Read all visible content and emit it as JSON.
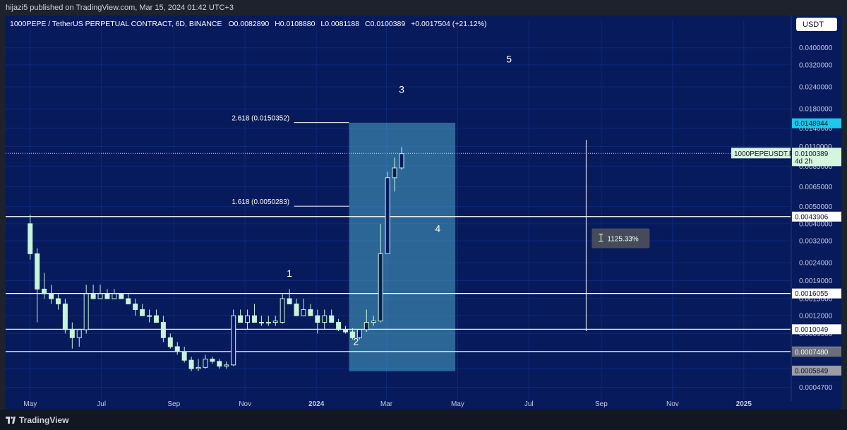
{
  "header": {
    "published": "hijazi5 published on TradingView.com, Mar 15, 2024 01:42 UTC+3",
    "symbol_line": "1000PEPE / TetherUS PERPETUAL CONTRACT, 6D, BINANCE",
    "o_label": "O",
    "o_value": "0.0082890",
    "h_label": "H",
    "h_value": "0.0108880",
    "l_label": "L",
    "l_value": "0.0081188",
    "c_label": "C",
    "c_value": "0.0100389",
    "change": "+0.0017504 (+21.12%)"
  },
  "currency_button": "USDT",
  "footer": {
    "brand": "TradingView"
  },
  "colors": {
    "background": "#061a5c",
    "candle": "#c8f5d9",
    "candle_outline": "#c8f5d9",
    "line": "#ffffff",
    "box_fill": "#4aa6c8",
    "axis_text": "#c5cbe0",
    "grid": "#0f2a78",
    "current_price_label": "#d6f5df",
    "cyan_label": "#1ec8ea"
  },
  "chart_data": {
    "type": "candlestick",
    "symbol": "1000PEPEUSDT.P",
    "interval": "6D",
    "y_scale": "log",
    "ylim": [
      0.0004,
      0.048
    ],
    "x_range": [
      "2023-04-10",
      "2025-02-10"
    ],
    "y_ticks": [
      "0.0400000",
      "0.0320000",
      "0.0240000",
      "0.0180000",
      "0.0140000",
      "0.0110000",
      "0.0085000",
      "0.0065000",
      "0.0050000",
      "0.0040000",
      "0.0032000",
      "0.0024000",
      "0.0019000",
      "0.0015000",
      "0.0012000",
      "0.0009500",
      "0.0007500",
      "0.0006000",
      "0.0004700"
    ],
    "x_ticks": [
      {
        "date": "2023-05-01",
        "label": "May",
        "bold": false
      },
      {
        "date": "2023-07-01",
        "label": "Jul",
        "bold": false
      },
      {
        "date": "2023-09-01",
        "label": "Sep",
        "bold": false
      },
      {
        "date": "2023-11-01",
        "label": "Nov",
        "bold": false
      },
      {
        "date": "2024-01-01",
        "label": "2024",
        "bold": true
      },
      {
        "date": "2024-03-01",
        "label": "Mar",
        "bold": false
      },
      {
        "date": "2024-05-01",
        "label": "May",
        "bold": false
      },
      {
        "date": "2024-07-01",
        "label": "Jul",
        "bold": false
      },
      {
        "date": "2024-09-01",
        "label": "Sep",
        "bold": false
      },
      {
        "date": "2024-11-01",
        "label": "Nov",
        "bold": false
      },
      {
        "date": "2025-01-01",
        "label": "2025",
        "bold": true
      }
    ],
    "candles": [
      {
        "d": "2023-05-01",
        "o": 0.004,
        "h": 0.0045,
        "l": 0.0025,
        "c": 0.0027
      },
      {
        "d": "2023-05-07",
        "o": 0.0027,
        "h": 0.0029,
        "l": 0.0011,
        "c": 0.0017
      },
      {
        "d": "2023-05-13",
        "o": 0.0017,
        "h": 0.0021,
        "l": 0.0015,
        "c": 0.0016
      },
      {
        "d": "2023-05-19",
        "o": 0.0016,
        "h": 0.0018,
        "l": 0.0014,
        "c": 0.0015
      },
      {
        "d": "2023-05-25",
        "o": 0.0015,
        "h": 0.0016,
        "l": 0.0013,
        "c": 0.0014
      },
      {
        "d": "2023-05-31",
        "o": 0.0014,
        "h": 0.0015,
        "l": 0.00095,
        "c": 0.001
      },
      {
        "d": "2023-06-06",
        "o": 0.001,
        "h": 0.0011,
        "l": 0.00078,
        "c": 0.0009
      },
      {
        "d": "2023-06-12",
        "o": 0.0009,
        "h": 0.001,
        "l": 0.0008,
        "c": 0.001
      },
      {
        "d": "2023-06-18",
        "o": 0.001,
        "h": 0.0018,
        "l": 0.00095,
        "c": 0.0016
      },
      {
        "d": "2023-06-24",
        "o": 0.0016,
        "h": 0.0018,
        "l": 0.0015,
        "c": 0.0015
      },
      {
        "d": "2023-06-30",
        "o": 0.0015,
        "h": 0.0018,
        "l": 0.0015,
        "c": 0.0016
      },
      {
        "d": "2023-07-06",
        "o": 0.0016,
        "h": 0.0017,
        "l": 0.0015,
        "c": 0.0015
      },
      {
        "d": "2023-07-12",
        "o": 0.0015,
        "h": 0.0017,
        "l": 0.0015,
        "c": 0.0016
      },
      {
        "d": "2023-07-18",
        "o": 0.0016,
        "h": 0.0016,
        "l": 0.0015,
        "c": 0.0015
      },
      {
        "d": "2023-07-24",
        "o": 0.0015,
        "h": 0.0016,
        "l": 0.0014,
        "c": 0.0014
      },
      {
        "d": "2023-07-30",
        "o": 0.0014,
        "h": 0.0015,
        "l": 0.0012,
        "c": 0.0013
      },
      {
        "d": "2023-08-05",
        "o": 0.0013,
        "h": 0.0014,
        "l": 0.0012,
        "c": 0.0012
      },
      {
        "d": "2023-08-11",
        "o": 0.0012,
        "h": 0.0013,
        "l": 0.0011,
        "c": 0.0012
      },
      {
        "d": "2023-08-17",
        "o": 0.0012,
        "h": 0.0013,
        "l": 0.0011,
        "c": 0.0011
      },
      {
        "d": "2023-08-23",
        "o": 0.0011,
        "h": 0.0012,
        "l": 0.00085,
        "c": 0.0009
      },
      {
        "d": "2023-08-29",
        "o": 0.0009,
        "h": 0.00095,
        "l": 0.00078,
        "c": 0.0008
      },
      {
        "d": "2023-09-04",
        "o": 0.0008,
        "h": 0.00085,
        "l": 0.00072,
        "c": 0.00075
      },
      {
        "d": "2023-09-10",
        "o": 0.00075,
        "h": 0.0008,
        "l": 0.00065,
        "c": 0.00067
      },
      {
        "d": "2023-09-16",
        "o": 0.00067,
        "h": 0.0007,
        "l": 0.00058,
        "c": 0.0006
      },
      {
        "d": "2023-09-22",
        "o": 0.0006,
        "h": 0.00068,
        "l": 0.00058,
        "c": 0.00061
      },
      {
        "d": "2023-09-28",
        "o": 0.00061,
        "h": 0.00072,
        "l": 0.0006,
        "c": 0.00068
      },
      {
        "d": "2023-10-04",
        "o": 0.00068,
        "h": 0.0007,
        "l": 0.00064,
        "c": 0.00066
      },
      {
        "d": "2023-10-10",
        "o": 0.00066,
        "h": 0.00068,
        "l": 0.0006,
        "c": 0.00062
      },
      {
        "d": "2023-10-16",
        "o": 0.00062,
        "h": 0.00066,
        "l": 0.0006,
        "c": 0.00063
      },
      {
        "d": "2023-10-22",
        "o": 0.00063,
        "h": 0.0013,
        "l": 0.00062,
        "c": 0.0012
      },
      {
        "d": "2023-10-28",
        "o": 0.0012,
        "h": 0.0013,
        "l": 0.0011,
        "c": 0.0011
      },
      {
        "d": "2023-11-03",
        "o": 0.0011,
        "h": 0.0013,
        "l": 0.001,
        "c": 0.0012
      },
      {
        "d": "2023-11-09",
        "o": 0.0012,
        "h": 0.0014,
        "l": 0.0011,
        "c": 0.0011
      },
      {
        "d": "2023-11-15",
        "o": 0.0011,
        "h": 0.0012,
        "l": 0.00105,
        "c": 0.0011
      },
      {
        "d": "2023-11-21",
        "o": 0.0011,
        "h": 0.0012,
        "l": 0.00105,
        "c": 0.0011
      },
      {
        "d": "2023-11-27",
        "o": 0.0011,
        "h": 0.0012,
        "l": 0.00105,
        "c": 0.00112
      },
      {
        "d": "2023-12-03",
        "o": 0.0011,
        "h": 0.0016,
        "l": 0.00108,
        "c": 0.0015
      },
      {
        "d": "2023-12-09",
        "o": 0.0015,
        "h": 0.0017,
        "l": 0.0014,
        "c": 0.0014
      },
      {
        "d": "2023-12-15",
        "o": 0.0014,
        "h": 0.0015,
        "l": 0.0012,
        "c": 0.0012
      },
      {
        "d": "2023-12-21",
        "o": 0.0012,
        "h": 0.0015,
        "l": 0.0012,
        "c": 0.0013
      },
      {
        "d": "2023-12-27",
        "o": 0.0013,
        "h": 0.0014,
        "l": 0.0012,
        "c": 0.0012
      },
      {
        "d": "2024-01-02",
        "o": 0.0012,
        "h": 0.0013,
        "l": 0.00095,
        "c": 0.0011
      },
      {
        "d": "2024-01-08",
        "o": 0.0011,
        "h": 0.0013,
        "l": 0.001,
        "c": 0.0012
      },
      {
        "d": "2024-01-14",
        "o": 0.0012,
        "h": 0.0013,
        "l": 0.0011,
        "c": 0.0011
      },
      {
        "d": "2024-01-20",
        "o": 0.0011,
        "h": 0.00115,
        "l": 0.00098,
        "c": 0.001
      },
      {
        "d": "2024-01-26",
        "o": 0.001,
        "h": 0.00105,
        "l": 0.00095,
        "c": 0.00097
      },
      {
        "d": "2024-02-01",
        "o": 0.00097,
        "h": 0.00102,
        "l": 0.00088,
        "c": 0.0009
      },
      {
        "d": "2024-02-07",
        "o": 0.0009,
        "h": 0.001,
        "l": 0.00088,
        "c": 0.001
      },
      {
        "d": "2024-02-13",
        "o": 0.001,
        "h": 0.0013,
        "l": 0.00097,
        "c": 0.0011
      },
      {
        "d": "2024-02-19",
        "o": 0.0011,
        "h": 0.0012,
        "l": 0.00105,
        "c": 0.00112
      },
      {
        "d": "2024-02-25",
        "o": 0.00112,
        "h": 0.004,
        "l": 0.0011,
        "c": 0.0027
      },
      {
        "d": "2024-03-02",
        "o": 0.0027,
        "h": 0.0079,
        "l": 0.0027,
        "c": 0.0073
      },
      {
        "d": "2024-03-08",
        "o": 0.0073,
        "h": 0.0095,
        "l": 0.0061,
        "c": 0.0083
      },
      {
        "d": "2024-03-14",
        "o": 0.0083,
        "h": 0.0109,
        "l": 0.0081,
        "c": 0.01
      }
    ],
    "horizontal_levels": [
      {
        "price": 0.0043906,
        "label": "0.0043906"
      },
      {
        "price": 0.0016055,
        "label": "0.0016055"
      },
      {
        "price": 0.0010049,
        "label": "0.0010049"
      },
      {
        "price": 0.0007506,
        "label": "0.0007506"
      }
    ],
    "fib_levels": [
      {
        "label": "2.618 (0.0150352)",
        "price": 0.0150352
      },
      {
        "label": "1.618 (0.0050283)",
        "price": 0.0050283
      }
    ],
    "wave_labels": [
      {
        "text": "1",
        "d": "2023-12-09",
        "price": 0.002
      },
      {
        "text": "2",
        "d": "2024-02-04",
        "price": 0.00082
      },
      {
        "text": "3",
        "d": "2024-03-14",
        "price": 0.0222
      },
      {
        "text": "4",
        "d": "2024-04-14",
        "price": 0.0036
      },
      {
        "text": "5",
        "d": "2024-06-14",
        "price": 0.033
      }
    ],
    "projection_box": {
      "d_start": "2024-01-29",
      "d_end": "2024-04-29",
      "price_top": 0.015,
      "price_bottom": 0.00058
    },
    "measure": {
      "d": "2024-08-19",
      "price_top": 0.012,
      "price_bottom": 0.00098,
      "label": "1125.33%"
    },
    "current_price": {
      "price": 0.0100389,
      "label": "0.0100389",
      "symbol_label": "1000PEPEUSDT.P",
      "countdown": "4d 2h"
    },
    "axis_labels": [
      {
        "price": 0.0148944,
        "label": "0.0148944",
        "style": "cyan"
      },
      {
        "price": 0.000748,
        "label": "0.0007480",
        "style": "gray"
      },
      {
        "price": 0.0005849,
        "label": "0.0005849",
        "style": "gray-light"
      }
    ]
  }
}
